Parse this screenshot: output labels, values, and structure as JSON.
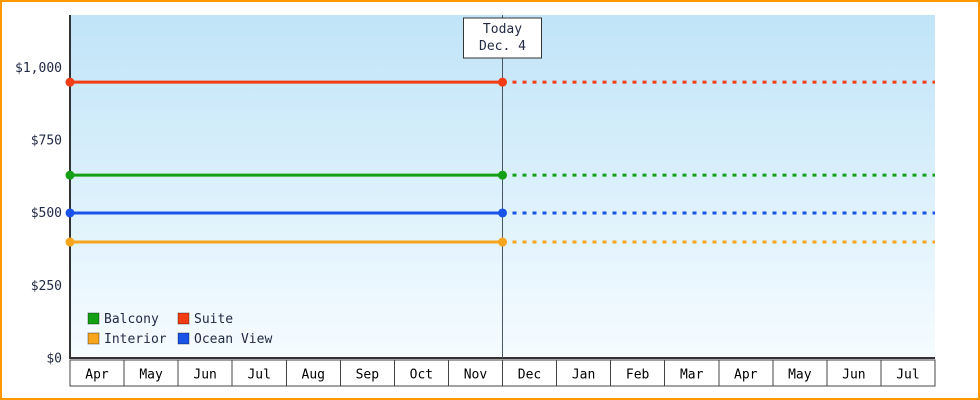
{
  "chart_data": {
    "type": "line",
    "description": "Cruise cabin price history by category with forecast after today marker",
    "today_annotation": {
      "line1": "Today",
      "line2": "Dec. 4"
    },
    "x_categories": [
      "Apr",
      "May",
      "Jun",
      "Jul",
      "Aug",
      "Sep",
      "Oct",
      "Nov",
      "Dec",
      "Jan",
      "Feb",
      "Mar",
      "Apr",
      "May",
      "Jun",
      "Jul"
    ],
    "today_boundary_index": 8,
    "ylim": [
      0,
      1180
    ],
    "y_ticks": [
      {
        "value": 0,
        "label": "$0"
      },
      {
        "value": 250,
        "label": "$250"
      },
      {
        "value": 500,
        "label": "$500"
      },
      {
        "value": 750,
        "label": "$750"
      },
      {
        "value": 1000,
        "label": "$1,000"
      }
    ],
    "series": [
      {
        "name": "Suite",
        "value": 949,
        "color": "#f23c14"
      },
      {
        "name": "Balcony",
        "value": 629,
        "color": "#14a014"
      },
      {
        "name": "Ocean View",
        "value": 499,
        "color": "#1a53e8"
      },
      {
        "name": "Interior",
        "value": 399,
        "color": "#f6a51c"
      }
    ],
    "legend_rows": [
      [
        "Balcony",
        "Suite"
      ],
      [
        "Interior",
        "Ocean View"
      ]
    ],
    "style": {
      "frame_border_color": "#ff9800",
      "plot_bg_top": "#c0e4f8",
      "plot_bg_bottom": "#f6fcff",
      "axis_color": "#333333",
      "tick_label_color": "#222b45",
      "month_label_color": "#000000",
      "today_line_color": "#4a5662",
      "box_bg": "#ffffff",
      "box_border": "#444444",
      "dash_pattern": "4 6",
      "line_width": 3,
      "marker_radius": 4.5
    }
  }
}
